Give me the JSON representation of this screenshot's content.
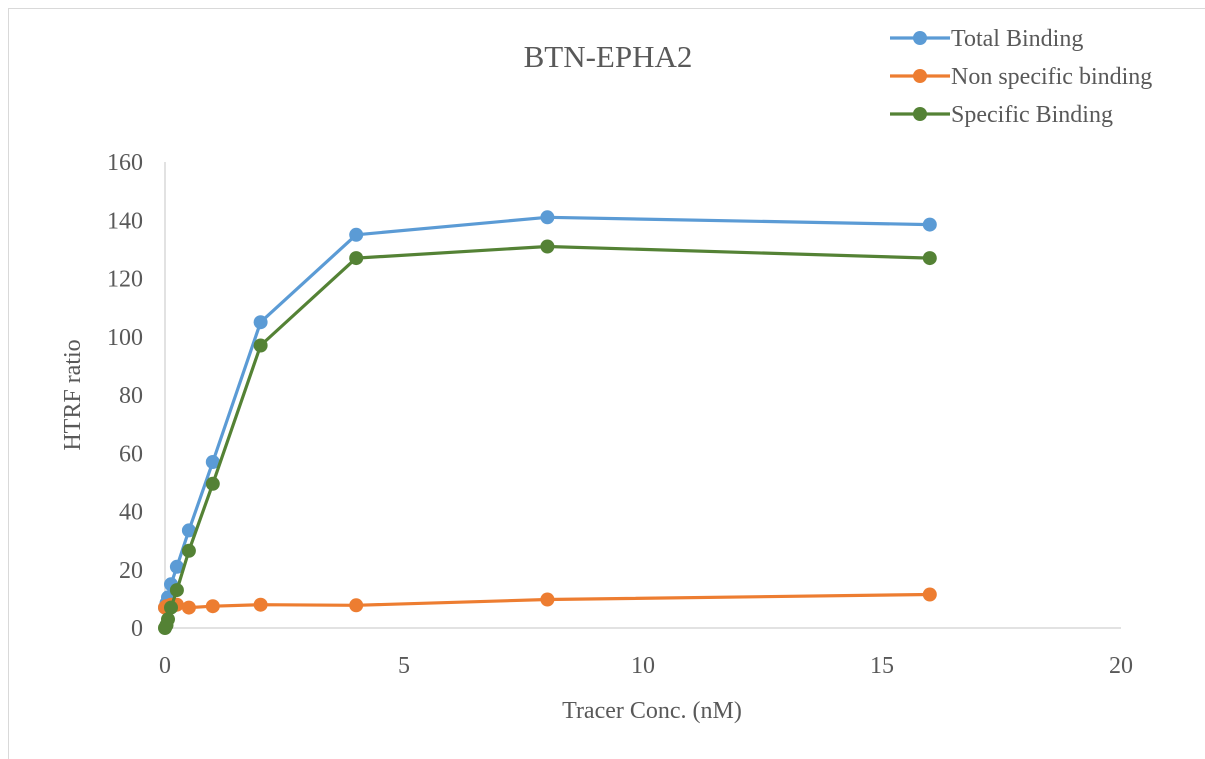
{
  "chart_data": {
    "type": "scatter",
    "title": "BTN-EPHA2",
    "xlabel": "Tracer Conc. (nM)",
    "ylabel": "HTRF ratio",
    "xlim": [
      0,
      20
    ],
    "ylim": [
      0,
      160
    ],
    "xticks": [
      0,
      5,
      10,
      15,
      20
    ],
    "yticks": [
      0,
      20,
      40,
      60,
      80,
      100,
      120,
      140,
      160
    ],
    "grid": false,
    "legend_position": "top-right",
    "series": [
      {
        "name": "Total Binding",
        "color": "#5b9bd5",
        "x": [
          0,
          0.03125,
          0.0625,
          0.125,
          0.25,
          0.5,
          1,
          2,
          4,
          8,
          16
        ],
        "y": [
          7,
          8.5,
          10.5,
          15,
          21,
          33.5,
          57,
          105,
          135,
          141,
          138.5
        ]
      },
      {
        "name": "Non specific binding",
        "color": "#ed7d31",
        "x": [
          0,
          0.03125,
          0.0625,
          0.125,
          0.25,
          0.5,
          1,
          2,
          4,
          8,
          16
        ],
        "y": [
          7,
          7.5,
          7.5,
          8,
          8,
          7,
          7.5,
          8,
          7.8,
          9.8,
          11.5
        ]
      },
      {
        "name": "Specific Binding",
        "color": "#548235",
        "x": [
          0,
          0.03125,
          0.0625,
          0.125,
          0.25,
          0.5,
          1,
          2,
          4,
          8,
          16
        ],
        "y": [
          0,
          1,
          3,
          7,
          13,
          26.5,
          49.5,
          97,
          127,
          131,
          127
        ]
      }
    ]
  }
}
